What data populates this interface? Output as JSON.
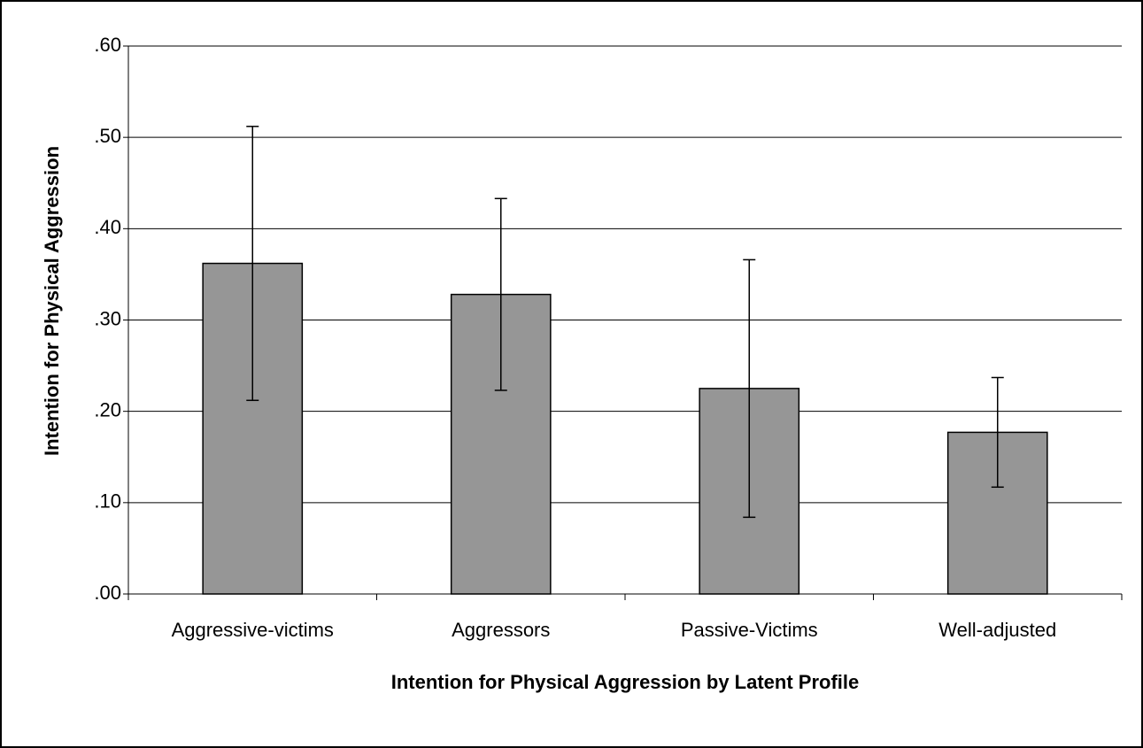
{
  "chart_data": {
    "type": "bar",
    "xlabel": "Intention for Physical Aggression by Latent Profile",
    "ylabel": "Intention for Physical Aggression",
    "categories": [
      "Aggressive-victims",
      "Aggressors",
      "Passive-Victims",
      "Well-adjusted"
    ],
    "values": [
      0.362,
      0.328,
      0.225,
      0.177
    ],
    "errors": [
      0.15,
      0.105,
      0.141,
      0.06
    ],
    "color": "#969696",
    "ylim": [
      0,
      0.6
    ],
    "yticks": [
      {
        "value": 0,
        "label": ".00"
      },
      {
        "value": 0.1,
        "label": ".10"
      },
      {
        "value": 0.2,
        "label": ".20"
      },
      {
        "value": 0.3,
        "label": ".30"
      },
      {
        "value": 0.4,
        "label": ".40"
      },
      {
        "value": 0.5,
        "label": ".50"
      },
      {
        "value": 0.6,
        "label": ".60"
      }
    ],
    "grid": true
  }
}
